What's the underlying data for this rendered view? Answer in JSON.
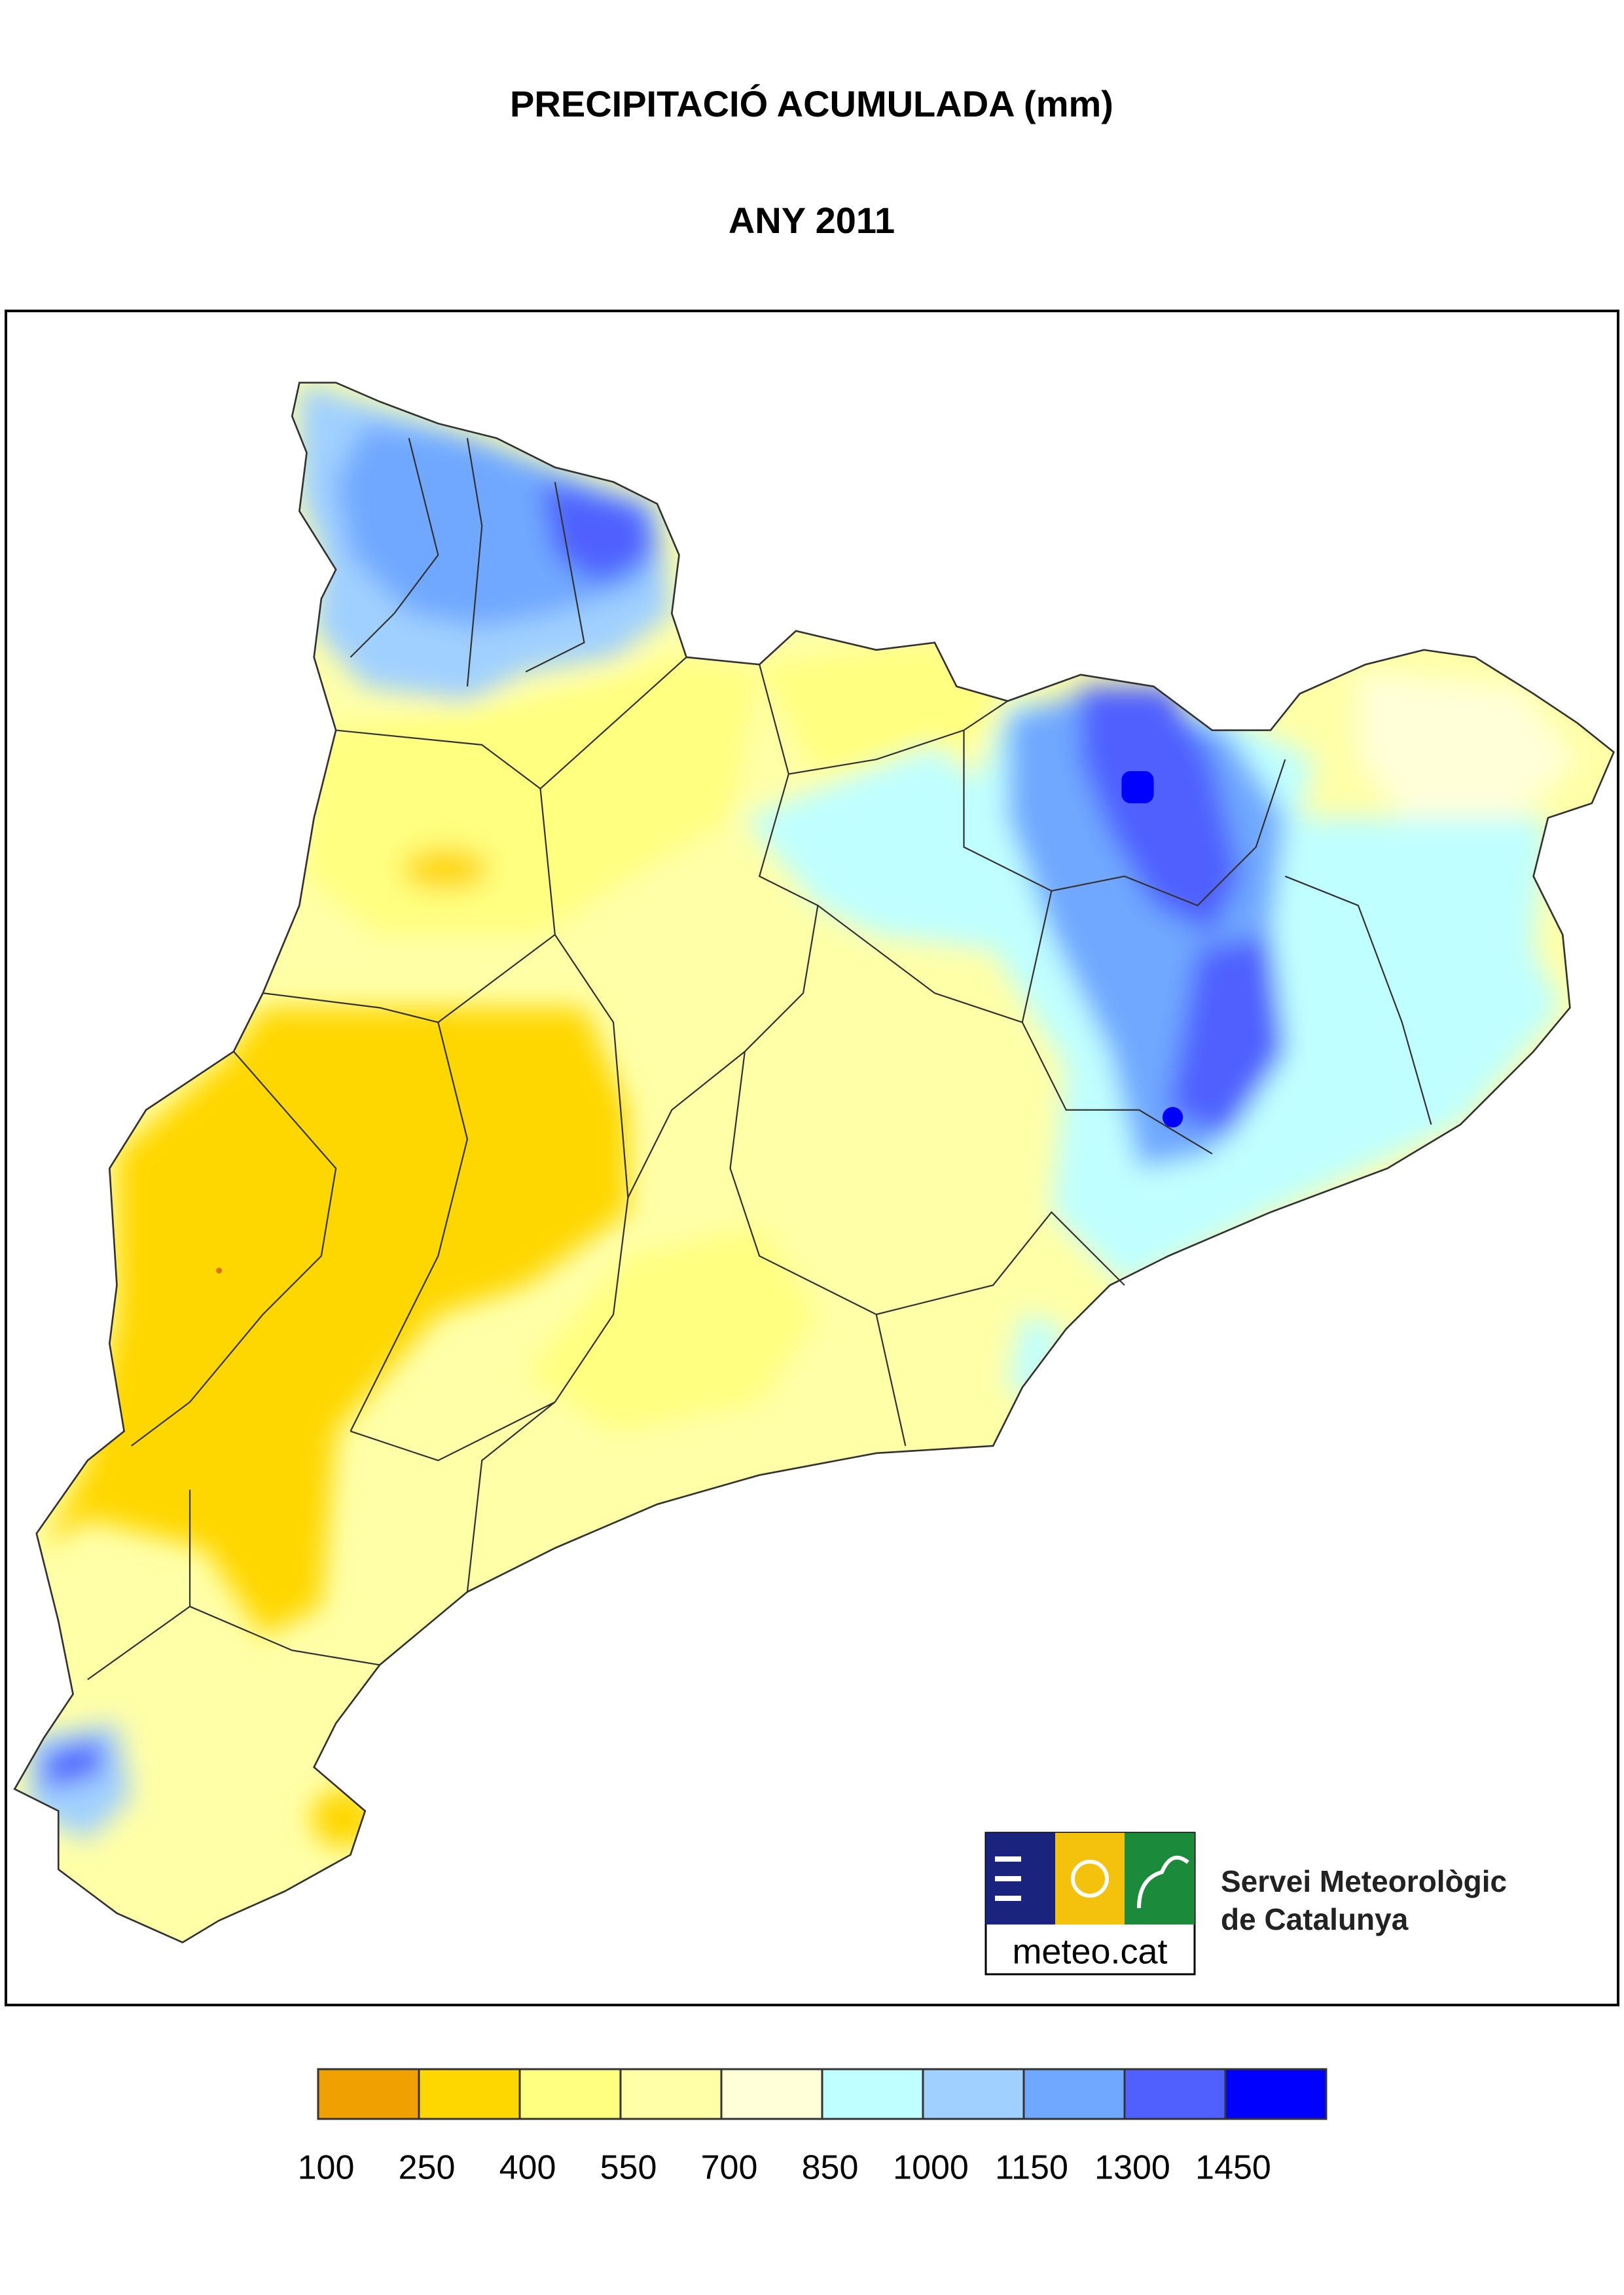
{
  "title": "PRECIPITACIÓ ACUMULADA (mm)",
  "subtitle": "ANY 2011",
  "legend": {
    "colors": [
      "#f0a000",
      "#ffd700",
      "#ffff80",
      "#ffffa8",
      "#ffffd8",
      "#c0ffff",
      "#a0d0ff",
      "#70a8ff",
      "#5060ff",
      "#0000ff"
    ],
    "labels": [
      100,
      250,
      400,
      550,
      700,
      850,
      1000,
      1150,
      1300,
      1450
    ]
  },
  "logo": {
    "brand": "meteo.cat",
    "name_line1": "Servei Meteorològic",
    "name_line2": "de Catalunya"
  }
}
